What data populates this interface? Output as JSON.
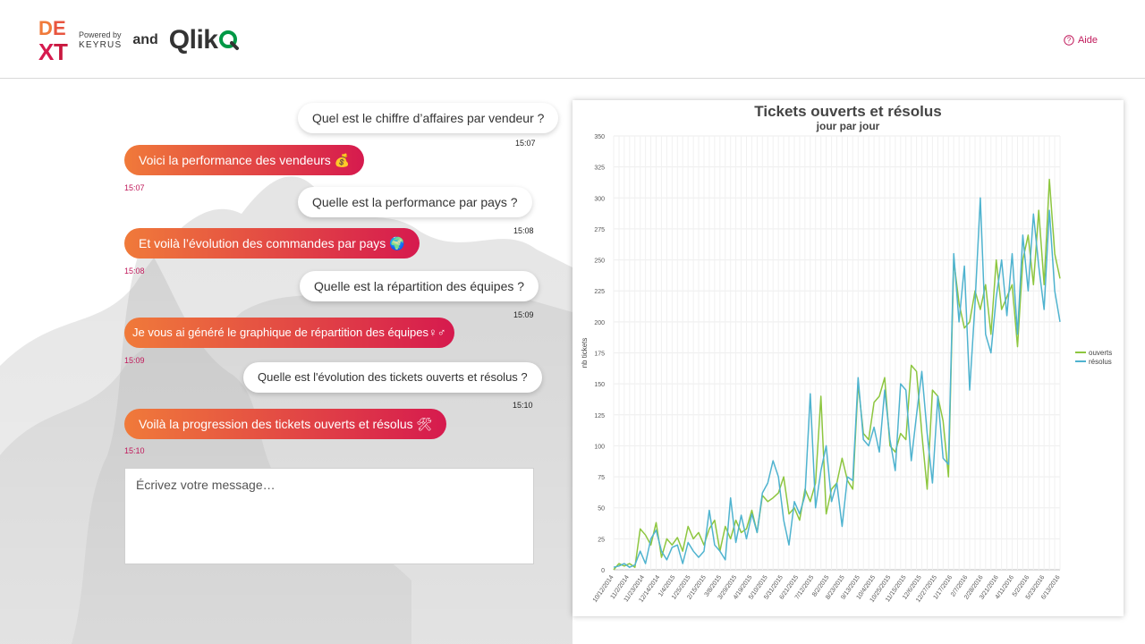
{
  "header": {
    "logo_text": "DEXT",
    "powered_by": "Powered by",
    "partner": "KEYRUS",
    "and_label": "and",
    "qlik_label": "Qlik",
    "help_label": "Aide",
    "help_icon": "help-circle-icon"
  },
  "colors": {
    "brand_red": "#d61a4e",
    "brand_orange": "#f07a3a",
    "help": "#c0185a",
    "series_ouverts": "#8dc63f",
    "series_resolus": "#4fb3cf"
  },
  "chat": {
    "messages": [
      {
        "from": "user",
        "text": "Quel est le chiffre d’affaires par vendeur ?",
        "time": "15:07"
      },
      {
        "from": "bot",
        "text": "Voici la performance des vendeurs 💰",
        "time": "15:07"
      },
      {
        "from": "user",
        "text": "Quelle est la performance par pays ?",
        "time": "15:08"
      },
      {
        "from": "bot",
        "text": "Et voilà l’évolution des commandes par pays 🌍",
        "time": "15:08"
      },
      {
        "from": "user",
        "text": "Quelle est la répartition des équipes ?",
        "time": "15:09"
      },
      {
        "from": "bot",
        "text": "Je vous ai généré le graphique de répartition des équipes♀♂",
        "time": "15:09"
      },
      {
        "from": "user",
        "text": "Quelle est l'évolution des tickets ouverts et résolus ?",
        "time": "15:10"
      },
      {
        "from": "bot",
        "text": "Voilà la progression des tickets ouverts et résolus  🛠",
        "time": "15:10"
      }
    ],
    "input_placeholder": "Écrivez votre message…"
  },
  "chart_data": {
    "type": "line",
    "title": "Tickets ouverts et résolus",
    "subtitle": "jour par jour",
    "xlabel": "",
    "ylabel": "nb tickets",
    "ylim": [
      0,
      350
    ],
    "yticks": [
      0,
      25,
      50,
      75,
      100,
      125,
      150,
      175,
      200,
      225,
      250,
      275,
      300,
      325,
      350
    ],
    "grid": true,
    "legend_position": "right",
    "x_tick_labels": [
      "10/12/2014",
      "11/2/2014",
      "11/23/2014",
      "12/14/2014",
      "1/4/2015",
      "1/25/2015",
      "2/15/2015",
      "3/8/2015",
      "3/29/2015",
      "4/19/2015",
      "5/10/2015",
      "5/31/2015",
      "6/21/2015",
      "7/12/2015",
      "8/2/2015",
      "8/23/2015",
      "9/13/2015",
      "10/4/2015",
      "10/25/2015",
      "11/15/2015",
      "12/6/2015",
      "12/27/2015",
      "1/17/2016",
      "2/7/2016",
      "2/28/2016",
      "3/21/2016",
      "4/11/2016",
      "5/2/2016",
      "5/23/2016",
      "6/13/2016"
    ],
    "series": [
      {
        "name": "ouverts",
        "color": "#8dc63f",
        "values": [
          0,
          5,
          3,
          5,
          2,
          33,
          28,
          20,
          38,
          10,
          25,
          20,
          26,
          15,
          35,
          25,
          30,
          20,
          33,
          40,
          15,
          35,
          25,
          40,
          30,
          33,
          48,
          30,
          60,
          55,
          58,
          62,
          75,
          45,
          50,
          40,
          65,
          55,
          70,
          140,
          45,
          65,
          70,
          90,
          72,
          65,
          150,
          110,
          105,
          135,
          140,
          155,
          100,
          95,
          110,
          105,
          165,
          160,
          110,
          65,
          145,
          140,
          120,
          75,
          250,
          215,
          195,
          200,
          225,
          210,
          230,
          190,
          250,
          210,
          220,
          230,
          180,
          250,
          270,
          230,
          290,
          230,
          315,
          255,
          235
        ]
      },
      {
        "name": "résolus",
        "color": "#4fb3cf",
        "values": [
          2,
          3,
          5,
          2,
          4,
          15,
          5,
          25,
          32,
          15,
          8,
          18,
          20,
          5,
          22,
          15,
          10,
          15,
          48,
          20,
          15,
          8,
          58,
          22,
          44,
          25,
          45,
          30,
          62,
          70,
          88,
          75,
          40,
          20,
          55,
          45,
          60,
          142,
          50,
          80,
          100,
          55,
          70,
          35,
          75,
          72,
          155,
          105,
          100,
          115,
          95,
          145,
          105,
          80,
          150,
          145,
          88,
          125,
          160,
          110,
          70,
          140,
          90,
          85,
          255,
          200,
          245,
          145,
          215,
          300,
          190,
          175,
          220,
          250,
          205,
          255,
          190,
          270,
          225,
          287,
          245,
          210,
          290,
          225,
          200
        ]
      }
    ]
  }
}
